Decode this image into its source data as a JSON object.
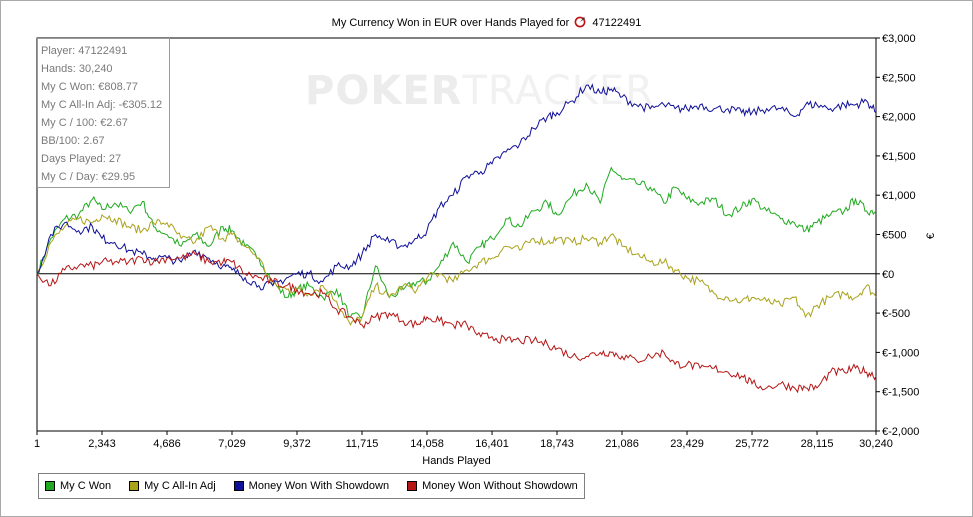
{
  "chart_title": "My Currency Won in EUR over Hands Played for",
  "player_id": "47122491",
  "stats": [
    "Player: 47122491",
    "Hands: 30,240",
    "My C Won: €808.77",
    "My C All-In Adj: -€305.12",
    "My C / 100: €2.67",
    "BB/100: 2.67",
    "Days Played: 27",
    "My C / Day: €29.95"
  ],
  "watermark": {
    "strong": "POKER",
    "light": "TRACKER"
  },
  "chart_data": {
    "type": "line",
    "title": "My Currency Won in EUR over Hands Played for 47122491",
    "xlabel": "Hands Played",
    "ylabel": "€",
    "xlim": [
      1,
      30240
    ],
    "ylim": [
      -2000,
      3000
    ],
    "x_ticks": [
      "1",
      "2,343",
      "4,686",
      "7,029",
      "9,372",
      "11,715",
      "14,058",
      "16,401",
      "18,743",
      "21,086",
      "23,429",
      "25,772",
      "28,115",
      "30,240"
    ],
    "y_ticks": [
      "€3,000",
      "€2,500",
      "€2,000",
      "€1,500",
      "€1,000",
      "€500",
      "€0",
      "€-500",
      "€-1,000",
      "€-1,500",
      "€-2,000"
    ],
    "grid": false,
    "legend_position": "bottom-left",
    "series": [
      {
        "name": "My C Won",
        "color": "#1faa1f",
        "x": [
          1,
          500,
          1000,
          1500,
          2000,
          2343,
          2800,
          3300,
          3800,
          4200,
          4686,
          5200,
          5700,
          6200,
          6700,
          7029,
          7500,
          8000,
          8500,
          9000,
          9372,
          9800,
          10300,
          10800,
          11300,
          11715,
          12200,
          12700,
          13200,
          13700,
          14058,
          14500,
          15000,
          15500,
          16000,
          16401,
          16900,
          17400,
          17900,
          18400,
          18743,
          19300,
          19800,
          20300,
          20700,
          21086,
          21600,
          22100,
          22600,
          23000,
          23429,
          23900,
          24400,
          24900,
          25400,
          25772,
          26300,
          26800,
          27300,
          27700,
          28115,
          28600,
          29100,
          29500,
          29900,
          30240
        ],
        "values": [
          0,
          450,
          700,
          750,
          950,
          820,
          900,
          800,
          920,
          600,
          500,
          350,
          500,
          350,
          600,
          550,
          350,
          200,
          -100,
          -300,
          -200,
          -150,
          -300,
          -200,
          -550,
          -550,
          100,
          -300,
          -200,
          -100,
          -100,
          100,
          400,
          150,
          350,
          450,
          700,
          600,
          800,
          900,
          750,
          1000,
          1150,
          900,
          1350,
          1200,
          1150,
          1100,
          900,
          1100,
          950,
          900,
          950,
          750,
          850,
          950,
          800,
          700,
          650,
          550,
          650,
          750,
          800,
          950,
          800,
          800
        ]
      },
      {
        "name": "My C All-In Adj",
        "color": "#a9a21a",
        "x": [
          1,
          500,
          1000,
          1500,
          2000,
          2343,
          2800,
          3300,
          3800,
          4200,
          4686,
          5200,
          5700,
          6200,
          6700,
          7029,
          7500,
          8000,
          8500,
          9000,
          9372,
          9800,
          10300,
          10800,
          11300,
          11715,
          12200,
          12700,
          13200,
          13700,
          14058,
          14500,
          15000,
          15500,
          16000,
          16401,
          16900,
          17400,
          17900,
          18400,
          18743,
          19300,
          19800,
          20300,
          20700,
          21086,
          21600,
          22100,
          22600,
          23000,
          23429,
          23900,
          24400,
          24900,
          25400,
          25772,
          26300,
          26800,
          27300,
          27700,
          28115,
          28600,
          29100,
          29500,
          29900,
          30240
        ],
        "values": [
          0,
          400,
          600,
          700,
          650,
          750,
          700,
          600,
          550,
          650,
          650,
          450,
          400,
          600,
          450,
          500,
          350,
          200,
          -150,
          -200,
          -200,
          -250,
          -150,
          -350,
          -650,
          -550,
          -150,
          -300,
          -150,
          -200,
          -50,
          0,
          -100,
          50,
          150,
          200,
          350,
          300,
          450,
          400,
          450,
          400,
          450,
          400,
          500,
          350,
          250,
          150,
          150,
          50,
          -50,
          -100,
          -250,
          -300,
          -350,
          -300,
          -350,
          -400,
          -300,
          -550,
          -400,
          -300,
          -250,
          -300,
          -150,
          -300
        ]
      },
      {
        "name": "Money Won With Showdown",
        "color": "#10109a",
        "x": [
          1,
          500,
          1000,
          1500,
          2000,
          2343,
          2800,
          3300,
          3800,
          4200,
          4686,
          5200,
          5700,
          6200,
          6700,
          7029,
          7500,
          8000,
          8500,
          9000,
          9372,
          9800,
          10300,
          10800,
          11300,
          11715,
          12200,
          12700,
          13200,
          13700,
          14058,
          14500,
          15000,
          15500,
          16000,
          16401,
          16900,
          17400,
          17900,
          18400,
          18743,
          19300,
          19800,
          20300,
          20700,
          21086,
          21600,
          22100,
          22600,
          23000,
          23429,
          23900,
          24400,
          24900,
          25400,
          25772,
          26300,
          26800,
          27300,
          27700,
          28115,
          28600,
          29100,
          29500,
          29900,
          30240
        ],
        "values": [
          0,
          500,
          650,
          550,
          600,
          450,
          400,
          300,
          250,
          200,
          200,
          150,
          300,
          200,
          100,
          50,
          -50,
          -150,
          -150,
          -50,
          0,
          0,
          -100,
          100,
          100,
          250,
          500,
          400,
          350,
          450,
          550,
          850,
          1000,
          1250,
          1300,
          1400,
          1550,
          1650,
          1850,
          2000,
          2050,
          2200,
          2400,
          2300,
          2350,
          2250,
          2150,
          2100,
          2150,
          2100,
          2100,
          2150,
          2100,
          2100,
          2050,
          2050,
          2100,
          2100,
          2000,
          2150,
          2150,
          2100,
          2150,
          2150,
          2200,
          2050
        ]
      },
      {
        "name": "Money Won Without Showdown",
        "color": "#b51515",
        "x": [
          1,
          500,
          1000,
          1500,
          2000,
          2343,
          2800,
          3300,
          3800,
          4200,
          4686,
          5200,
          5700,
          6200,
          6700,
          7029,
          7500,
          8000,
          8500,
          9000,
          9372,
          9800,
          10300,
          10800,
          11300,
          11715,
          12200,
          12700,
          13200,
          13700,
          14058,
          14500,
          15000,
          15500,
          16000,
          16401,
          16900,
          17400,
          17900,
          18400,
          18743,
          19300,
          19800,
          20300,
          20700,
          21086,
          21600,
          22100,
          22600,
          23000,
          23429,
          23900,
          24400,
          24900,
          25400,
          25772,
          26300,
          26800,
          27300,
          27700,
          28115,
          28600,
          29100,
          29500,
          29900,
          30240
        ],
        "values": [
          0,
          -150,
          50,
          100,
          100,
          150,
          150,
          150,
          200,
          150,
          200,
          200,
          250,
          150,
          150,
          150,
          0,
          -50,
          -100,
          -150,
          -200,
          -250,
          -250,
          -450,
          -550,
          -650,
          -550,
          -500,
          -600,
          -650,
          -550,
          -600,
          -650,
          -650,
          -800,
          -800,
          -850,
          -850,
          -850,
          -900,
          -950,
          -1050,
          -1050,
          -1000,
          -1000,
          -1050,
          -1100,
          -1050,
          -1000,
          -1150,
          -1150,
          -1200,
          -1200,
          -1250,
          -1300,
          -1400,
          -1450,
          -1400,
          -1450,
          -1450,
          -1450,
          -1250,
          -1250,
          -1200,
          -1250,
          -1300
        ]
      }
    ]
  }
}
